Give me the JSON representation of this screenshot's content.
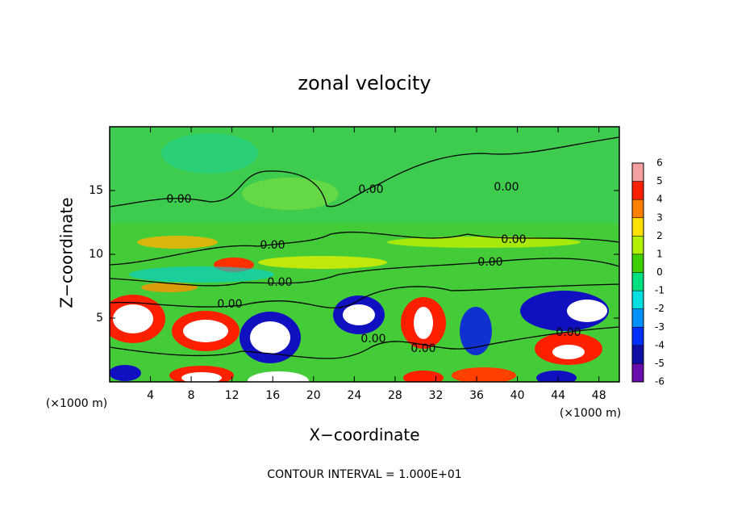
{
  "chart_data": {
    "type": "contour",
    "title": "zonal velocity",
    "x_label": "X−coordinate",
    "y_label": "Z−coordinate",
    "x_unit": "(×1000 m)",
    "xlim": [
      0,
      50
    ],
    "ylim": [
      0,
      20
    ],
    "xticks": [
      4,
      8,
      12,
      16,
      20,
      24,
      28,
      32,
      36,
      40,
      44,
      48
    ],
    "yticks": [
      5,
      10,
      15
    ],
    "colorbar": {
      "levels": [
        -6,
        -5,
        -4,
        -3,
        -2,
        -1,
        0,
        1,
        2,
        3,
        4,
        5,
        6
      ],
      "colors": [
        "#6a0dad",
        "#1010a8",
        "#0030ff",
        "#0090ff",
        "#00e0e0",
        "#00e080",
        "#40d000",
        "#b0f000",
        "#ffe000",
        "#ff8000",
        "#ff2000",
        "#f4a0a0"
      ]
    },
    "contour_labels": [
      "0.00",
      "0.00",
      "0.00",
      "0.00",
      "0.00",
      "0.00",
      "0.00",
      "0.00",
      "0.00",
      "0.00",
      "0.00"
    ],
    "footnote": "CONTOUR INTERVAL = 1.000E+01"
  }
}
